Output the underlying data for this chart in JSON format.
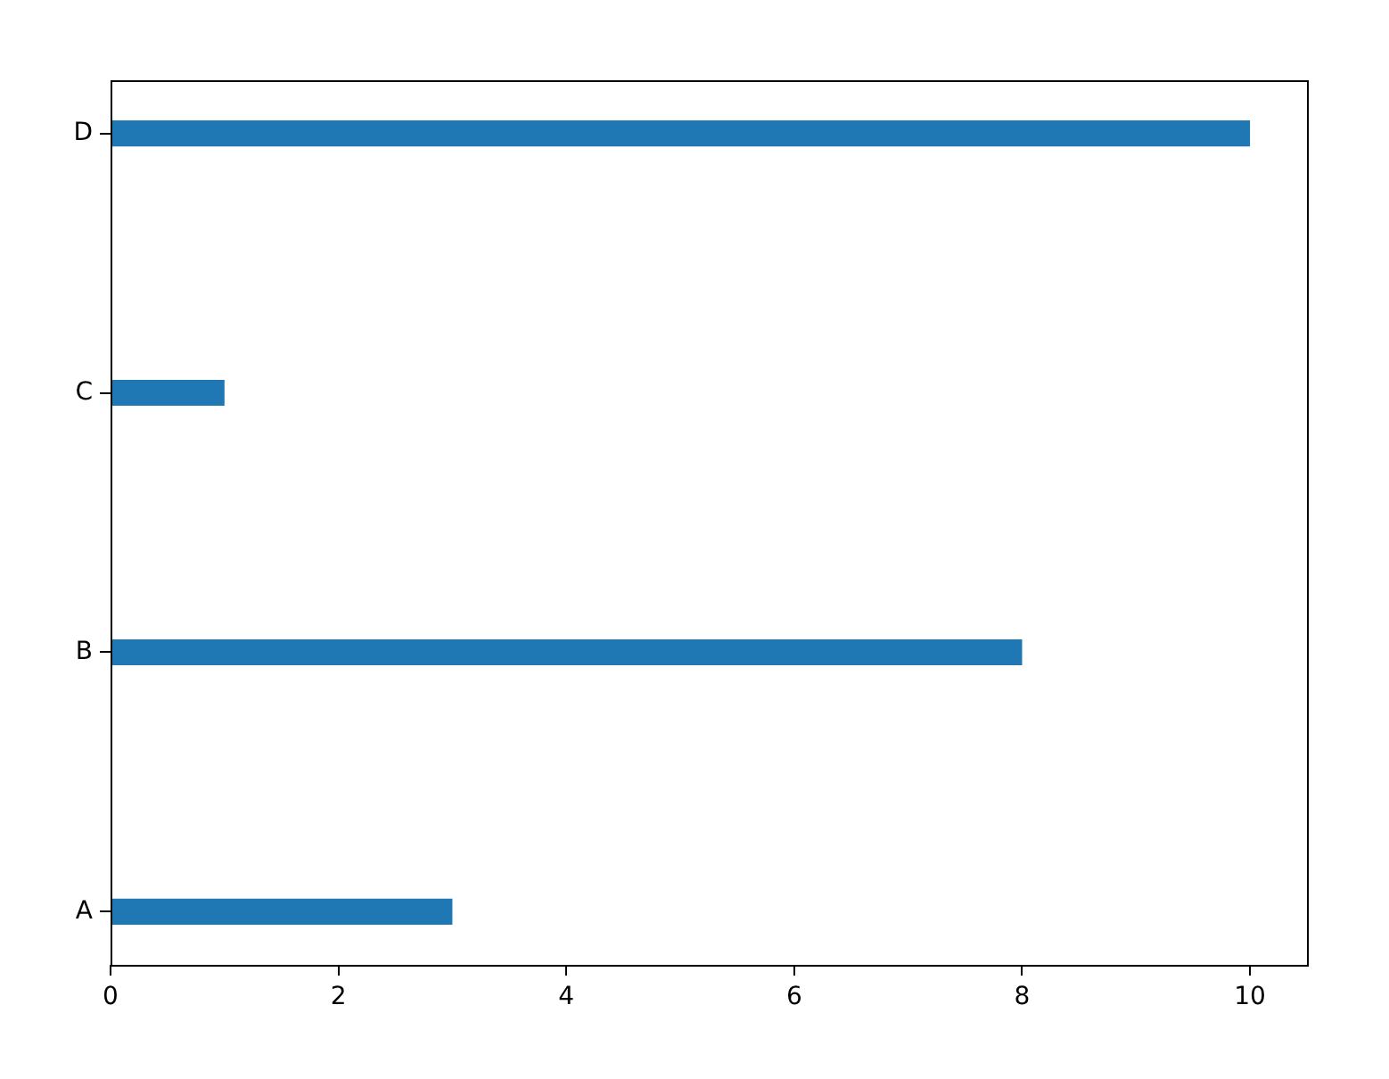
{
  "chart_data": {
    "type": "bar",
    "orientation": "horizontal",
    "categories": [
      "D",
      "C",
      "B",
      "A"
    ],
    "values": [
      10,
      1,
      8,
      3
    ],
    "color": "#1f77b4",
    "xlim": [
      0,
      10.5
    ],
    "xticks": [
      0,
      2,
      4,
      6,
      8,
      10
    ]
  }
}
